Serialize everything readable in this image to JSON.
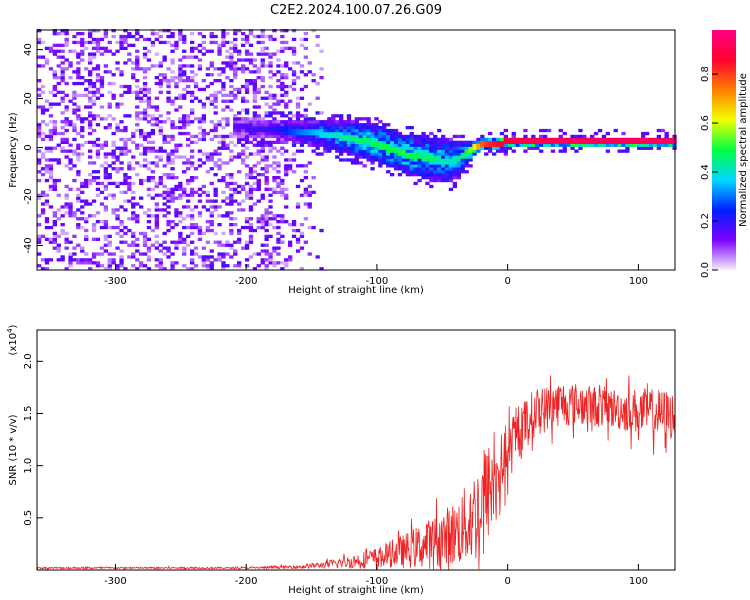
{
  "title": "C2E2.2024.100.07.26.G09",
  "chart_data": [
    {
      "type": "heatmap",
      "xlabel": "Height of straight line (km)",
      "ylabel": "Frequency (Hz)",
      "xlim": [
        -360,
        128
      ],
      "ylim": [
        -50,
        48
      ],
      "xticks": [
        -300,
        -200,
        -100,
        0,
        100
      ],
      "yticks": [
        -40,
        -20,
        0,
        20,
        40
      ],
      "colorbar": {
        "label": "Normalized spectral amplitude",
        "range": [
          0.0,
          0.98
        ],
        "ticks": [
          0.0,
          0.2,
          0.4,
          0.6,
          0.8
        ],
        "colors": [
          "#f4eefc",
          "#7a00ff",
          "#0020ff",
          "#00d8ff",
          "#00ff40",
          "#f0ff00",
          "#ff8000",
          "#ff0030",
          "#ff0080"
        ]
      },
      "noise_region": {
        "x_range": [
          -360,
          -150
        ],
        "amplitude": 0.12
      },
      "signal_track": {
        "x": [
          -210,
          -180,
          -160,
          -140,
          -120,
          -100,
          -80,
          -60,
          -45,
          -35,
          -28,
          -20,
          -10,
          0,
          20,
          50,
          80,
          110,
          128
        ],
        "center_hz": [
          8,
          7,
          6,
          5,
          3,
          1,
          -3,
          -5,
          -6,
          -4,
          -1,
          1,
          1,
          2,
          2,
          2,
          2,
          2,
          2
        ],
        "spread_hz": [
          4,
          4,
          5,
          6,
          7,
          8,
          8,
          9,
          9,
          6,
          3,
          2,
          2,
          2,
          2,
          2,
          2,
          2,
          2
        ],
        "amplitude": [
          0.15,
          0.2,
          0.3,
          0.38,
          0.45,
          0.48,
          0.5,
          0.45,
          0.4,
          0.45,
          0.6,
          0.8,
          0.85,
          0.88,
          0.9,
          0.92,
          0.92,
          0.93,
          0.93
        ]
      }
    },
    {
      "type": "line",
      "xlabel": "Height of straight line (km)",
      "ylabel": "SNR (10 * v/v)",
      "multiplier_label": "(x10",
      "multiplier_exp": "4",
      "xlim": [
        -360,
        128
      ],
      "ylim": [
        0,
        2.3
      ],
      "xticks": [
        -300,
        -200,
        -100,
        0,
        100
      ],
      "yticks": [
        0.5,
        1.0,
        1.5,
        2.0
      ],
      "ytick_labels": [
        "0.5",
        "1.0",
        "1.5",
        "2.0"
      ],
      "color": "#ee2222",
      "envelope": {
        "x": [
          -360,
          -200,
          -160,
          -140,
          -120,
          -100,
          -80,
          -60,
          -40,
          -30,
          -20,
          -15,
          -10,
          -5,
          0,
          10,
          20,
          30,
          40,
          60,
          80,
          100,
          115,
          128
        ],
        "mean": [
          0.02,
          0.02,
          0.03,
          0.05,
          0.08,
          0.12,
          0.18,
          0.25,
          0.35,
          0.45,
          0.6,
          0.75,
          0.85,
          1.0,
          1.1,
          1.35,
          1.5,
          1.55,
          1.6,
          1.58,
          1.55,
          1.52,
          1.5,
          1.48
        ],
        "amplitude": [
          0.01,
          0.01,
          0.02,
          0.04,
          0.08,
          0.12,
          0.2,
          0.3,
          0.4,
          0.5,
          0.65,
          0.6,
          0.5,
          0.4,
          0.35,
          0.3,
          0.3,
          0.28,
          0.28,
          0.25,
          0.25,
          0.28,
          0.3,
          0.3
        ]
      }
    }
  ]
}
